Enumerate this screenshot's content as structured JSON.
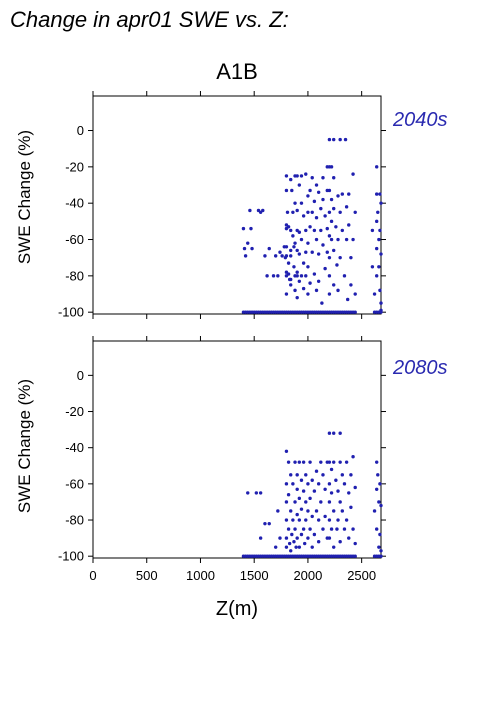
{
  "figure": {
    "title": "Change in apr01 SWE vs. Z:",
    "scenario": "A1B",
    "xlabel": "Z(m)"
  },
  "colors": {
    "points": "#2020b0",
    "period_label": "#2a2ab0",
    "axis": "#000000"
  },
  "chart_data": [
    {
      "type": "scatter",
      "period_label": "2040s",
      "ylabel": "SWE Change (%)",
      "xlim": [
        0,
        2680
      ],
      "ylim": [
        -101,
        19
      ],
      "y_ticks": [
        0,
        -20,
        -40,
        -60,
        -80,
        -100
      ],
      "x_ticks": [
        0,
        500,
        1000,
        1500,
        2000,
        2500
      ],
      "show_x_tick_labels": false,
      "points": [
        [
          1400,
          -54
        ],
        [
          1410,
          -65
        ],
        [
          1420,
          -69
        ],
        [
          1440,
          -62
        ],
        [
          1460,
          -44
        ],
        [
          1470,
          -54
        ],
        [
          1480,
          -65
        ],
        [
          1540,
          -44
        ],
        [
          1560,
          -45
        ],
        [
          1580,
          -44
        ],
        [
          1600,
          -69
        ],
        [
          1620,
          -80
        ],
        [
          1640,
          -65
        ],
        [
          1680,
          -80
        ],
        [
          1700,
          -69
        ],
        [
          1720,
          -80
        ],
        [
          1740,
          -67
        ],
        [
          1760,
          -69
        ],
        [
          1780,
          -64
        ],
        [
          1790,
          -70
        ],
        [
          1800,
          -25
        ],
        [
          1800,
          -33
        ],
        [
          1800,
          -52
        ],
        [
          1800,
          -54
        ],
        [
          1800,
          -64
        ],
        [
          1800,
          -69
        ],
        [
          1800,
          -78
        ],
        [
          1800,
          -80
        ],
        [
          1800,
          -90
        ],
        [
          1810,
          -45
        ],
        [
          1820,
          -53
        ],
        [
          1820,
          -73
        ],
        [
          1820,
          -79
        ],
        [
          1830,
          -82
        ],
        [
          1840,
          -27
        ],
        [
          1840,
          -55
        ],
        [
          1840,
          -66
        ],
        [
          1840,
          -69
        ],
        [
          1840,
          -82
        ],
        [
          1840,
          -85
        ],
        [
          1850,
          -33
        ],
        [
          1860,
          -45
        ],
        [
          1860,
          -58
        ],
        [
          1870,
          -64
        ],
        [
          1870,
          -75
        ],
        [
          1880,
          -25
        ],
        [
          1880,
          -40
        ],
        [
          1880,
          -62
        ],
        [
          1880,
          -80
        ],
        [
          1880,
          -88
        ],
        [
          1900,
          -25
        ],
        [
          1900,
          -44
        ],
        [
          1900,
          -55
        ],
        [
          1900,
          -66
        ],
        [
          1900,
          -78
        ],
        [
          1900,
          -80
        ],
        [
          1900,
          -92
        ],
        [
          1920,
          -30
        ],
        [
          1920,
          -56
        ],
        [
          1920,
          -68
        ],
        [
          1920,
          -83
        ],
        [
          1940,
          -25
        ],
        [
          1940,
          -40
        ],
        [
          1940,
          -60
        ],
        [
          1940,
          -80
        ],
        [
          1960,
          -47
        ],
        [
          1960,
          -73
        ],
        [
          1960,
          -87
        ],
        [
          1980,
          -24
        ],
        [
          1980,
          -55
        ],
        [
          1980,
          -67
        ],
        [
          1980,
          -80
        ],
        [
          2000,
          -36
        ],
        [
          2000,
          -45
        ],
        [
          2000,
          -62
        ],
        [
          2000,
          -75
        ],
        [
          2000,
          -90
        ],
        [
          2020,
          -33
        ],
        [
          2020,
          -53
        ],
        [
          2020,
          -84
        ],
        [
          2040,
          -26
        ],
        [
          2040,
          -45
        ],
        [
          2040,
          -67
        ],
        [
          2060,
          -39
        ],
        [
          2060,
          -55
        ],
        [
          2060,
          -79
        ],
        [
          2080,
          -30
        ],
        [
          2080,
          -48
        ],
        [
          2080,
          -60
        ],
        [
          2080,
          -88
        ],
        [
          2100,
          -34
        ],
        [
          2100,
          -68
        ],
        [
          2100,
          -83
        ],
        [
          2120,
          -43
        ],
        [
          2120,
          -55
        ],
        [
          2130,
          -95
        ],
        [
          2140,
          -26
        ],
        [
          2140,
          -38
        ],
        [
          2140,
          -63
        ],
        [
          2160,
          -47
        ],
        [
          2160,
          -76
        ],
        [
          2180,
          -20
        ],
        [
          2180,
          -33
        ],
        [
          2180,
          -54
        ],
        [
          2180,
          -67
        ],
        [
          2200,
          -5
        ],
        [
          2200,
          -20
        ],
        [
          2200,
          -33
        ],
        [
          2200,
          -45
        ],
        [
          2200,
          -58
        ],
        [
          2200,
          -70
        ],
        [
          2200,
          -80
        ],
        [
          2200,
          -90
        ],
        [
          2220,
          -20
        ],
        [
          2220,
          -38
        ],
        [
          2220,
          -50
        ],
        [
          2220,
          -60
        ],
        [
          2240,
          -5
        ],
        [
          2240,
          -26
        ],
        [
          2240,
          -43
        ],
        [
          2240,
          -66
        ],
        [
          2240,
          -85
        ],
        [
          2260,
          -53
        ],
        [
          2270,
          -74
        ],
        [
          2280,
          -36
        ],
        [
          2280,
          -60
        ],
        [
          2280,
          -88
        ],
        [
          2300,
          -5
        ],
        [
          2300,
          -45
        ],
        [
          2300,
          -70
        ],
        [
          2320,
          -35
        ],
        [
          2320,
          -55
        ],
        [
          2340,
          -80
        ],
        [
          2350,
          -5
        ],
        [
          2360,
          -42
        ],
        [
          2360,
          -60
        ],
        [
          2370,
          -93
        ],
        [
          2380,
          -35
        ],
        [
          2380,
          -52
        ],
        [
          2400,
          -70
        ],
        [
          2400,
          -85
        ],
        [
          2420,
          -24
        ],
        [
          2420,
          -60
        ],
        [
          2440,
          -45
        ],
        [
          2440,
          -90
        ],
        [
          2600,
          -55
        ],
        [
          2600,
          -75
        ],
        [
          2620,
          -90
        ],
        [
          2640,
          -20
        ],
        [
          2640,
          -35
        ],
        [
          2640,
          -50
        ],
        [
          2640,
          -65
        ],
        [
          2640,
          -80
        ],
        [
          2650,
          -45
        ],
        [
          2660,
          -60
        ],
        [
          2660,
          -75
        ],
        [
          2670,
          -35
        ],
        [
          2670,
          -55
        ],
        [
          2670,
          -88
        ],
        [
          2680,
          -40
        ],
        [
          2680,
          -68
        ],
        [
          2680,
          -95
        ],
        [
          2680,
          -99
        ]
      ],
      "floor_points": {
        "y": -100,
        "x": [
          1400,
          1420,
          1440,
          1460,
          1480,
          1500,
          1520,
          1540,
          1560,
          1580,
          1600,
          1620,
          1640,
          1660,
          1680,
          1700,
          1720,
          1740,
          1760,
          1780,
          1800,
          1820,
          1840,
          1860,
          1880,
          1900,
          1920,
          1940,
          1960,
          1980,
          2000,
          2020,
          2040,
          2060,
          2080,
          2100,
          2120,
          2140,
          2160,
          2180,
          2200,
          2220,
          2240,
          2260,
          2280,
          2300,
          2320,
          2340,
          2360,
          2380,
          2400,
          2420,
          2440,
          2620,
          2640,
          2660,
          2680
        ]
      }
    },
    {
      "type": "scatter",
      "period_label": "2080s",
      "ylabel": "SWE Change (%)",
      "xlim": [
        0,
        2680
      ],
      "ylim": [
        -101,
        19
      ],
      "y_ticks": [
        0,
        -20,
        -40,
        -60,
        -80,
        -100
      ],
      "x_ticks": [
        0,
        500,
        1000,
        1500,
        2000,
        2500
      ],
      "show_x_tick_labels": true,
      "points": [
        [
          1440,
          -65
        ],
        [
          1520,
          -65
        ],
        [
          1560,
          -65
        ],
        [
          1560,
          -90
        ],
        [
          1600,
          -82
        ],
        [
          1640,
          -82
        ],
        [
          1700,
          -95
        ],
        [
          1720,
          -75
        ],
        [
          1740,
          -90
        ],
        [
          1800,
          -42
        ],
        [
          1800,
          -60
        ],
        [
          1800,
          -70
        ],
        [
          1800,
          -80
        ],
        [
          1800,
          -90
        ],
        [
          1800,
          -95
        ],
        [
          1820,
          -48
        ],
        [
          1820,
          -66
        ],
        [
          1820,
          -85
        ],
        [
          1830,
          -93
        ],
        [
          1840,
          -55
        ],
        [
          1840,
          -75
        ],
        [
          1840,
          -97
        ],
        [
          1850,
          -88
        ],
        [
          1860,
          -60
        ],
        [
          1860,
          -80
        ],
        [
          1870,
          -92
        ],
        [
          1880,
          -48
        ],
        [
          1880,
          -70
        ],
        [
          1880,
          -85
        ],
        [
          1890,
          -95
        ],
        [
          1900,
          -55
        ],
        [
          1900,
          -63
        ],
        [
          1900,
          -77
        ],
        [
          1900,
          -90
        ],
        [
          1920,
          -48
        ],
        [
          1920,
          -68
        ],
        [
          1920,
          -80
        ],
        [
          1920,
          -95
        ],
        [
          1940,
          -58
        ],
        [
          1940,
          -74
        ],
        [
          1940,
          -88
        ],
        [
          1960,
          -48
        ],
        [
          1960,
          -64
        ],
        [
          1960,
          -85
        ],
        [
          1970,
          -93
        ],
        [
          1980,
          -55
        ],
        [
          1980,
          -70
        ],
        [
          1980,
          -80
        ],
        [
          2000,
          -60
        ],
        [
          2000,
          -75
        ],
        [
          2000,
          -90
        ],
        [
          2020,
          -48
        ],
        [
          2020,
          -68
        ],
        [
          2020,
          -85
        ],
        [
          2040,
          -58
        ],
        [
          2040,
          -78
        ],
        [
          2040,
          -95
        ],
        [
          2060,
          -64
        ],
        [
          2060,
          -88
        ],
        [
          2080,
          -53
        ],
        [
          2080,
          -75
        ],
        [
          2100,
          -60
        ],
        [
          2100,
          -80
        ],
        [
          2100,
          -92
        ],
        [
          2120,
          -48
        ],
        [
          2120,
          -70
        ],
        [
          2140,
          -55
        ],
        [
          2140,
          -85
        ],
        [
          2160,
          -63
        ],
        [
          2160,
          -78
        ],
        [
          2180,
          -48
        ],
        [
          2180,
          -90
        ],
        [
          2200,
          -32
        ],
        [
          2200,
          -48
        ],
        [
          2200,
          -60
        ],
        [
          2200,
          -70
        ],
        [
          2200,
          -80
        ],
        [
          2200,
          -90
        ],
        [
          2220,
          -52
        ],
        [
          2220,
          -65
        ],
        [
          2220,
          -85
        ],
        [
          2240,
          -32
        ],
        [
          2240,
          -48
        ],
        [
          2240,
          -75
        ],
        [
          2240,
          -95
        ],
        [
          2260,
          -58
        ],
        [
          2270,
          -85
        ],
        [
          2280,
          -64
        ],
        [
          2280,
          -80
        ],
        [
          2300,
          -32
        ],
        [
          2300,
          -48
        ],
        [
          2300,
          -70
        ],
        [
          2300,
          -92
        ],
        [
          2320,
          -55
        ],
        [
          2320,
          -75
        ],
        [
          2340,
          -60
        ],
        [
          2340,
          -85
        ],
        [
          2360,
          -48
        ],
        [
          2360,
          -80
        ],
        [
          2380,
          -65
        ],
        [
          2380,
          -90
        ],
        [
          2400,
          -55
        ],
        [
          2400,
          -73
        ],
        [
          2420,
          -45
        ],
        [
          2420,
          -85
        ],
        [
          2440,
          -62
        ],
        [
          2440,
          -93
        ],
        [
          2620,
          -75
        ],
        [
          2640,
          -48
        ],
        [
          2640,
          -63
        ],
        [
          2640,
          -85
        ],
        [
          2650,
          -55
        ],
        [
          2660,
          -70
        ],
        [
          2660,
          -95
        ],
        [
          2670,
          -60
        ],
        [
          2670,
          -88
        ],
        [
          2680,
          -72
        ],
        [
          2680,
          -97
        ]
      ],
      "floor_points": {
        "y": -100,
        "x": [
          1400,
          1420,
          1440,
          1460,
          1480,
          1500,
          1520,
          1540,
          1560,
          1580,
          1600,
          1620,
          1640,
          1660,
          1680,
          1700,
          1720,
          1740,
          1760,
          1780,
          1800,
          1820,
          1840,
          1860,
          1880,
          1900,
          1920,
          1940,
          1960,
          1980,
          2000,
          2020,
          2040,
          2060,
          2080,
          2100,
          2120,
          2140,
          2160,
          2180,
          2200,
          2220,
          2240,
          2260,
          2280,
          2300,
          2320,
          2340,
          2360,
          2380,
          2400,
          2420,
          2440,
          2620,
          2640,
          2660,
          2680
        ]
      }
    }
  ]
}
